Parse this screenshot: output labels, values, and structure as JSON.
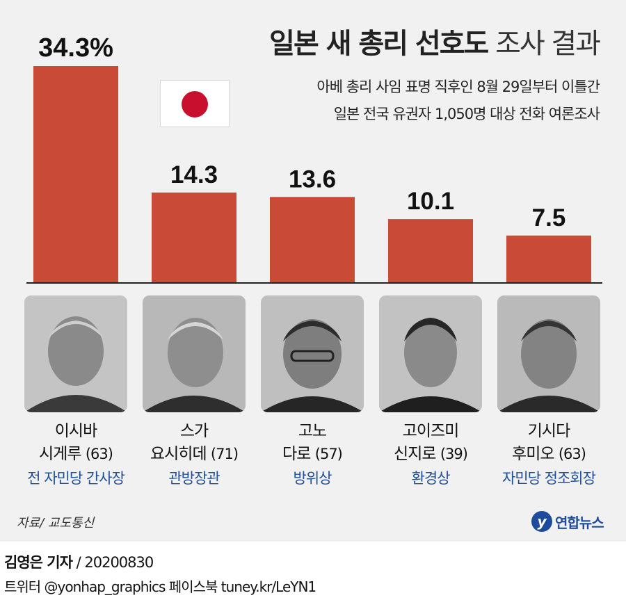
{
  "title": {
    "bold": "일본 새 총리 선호도",
    "light": "조사 결과"
  },
  "subtitle": [
    "아베 총리 사임 표명 직후인 8월 29일부터 이틀간",
    "일본 전국 유권자 1,050명 대상 전화 여론조사"
  ],
  "flag_icon": "japan-flag-icon",
  "colors": {
    "bar": "#c94a37",
    "role": "#1f4f9b",
    "background": "#f1f1f1"
  },
  "chart_data": {
    "type": "bar",
    "title": "일본 새 총리 선호도 조사 결과",
    "categories": [
      "이시바 시게루",
      "스가 요시히데",
      "고노 다로",
      "고이즈미 신지로",
      "기시다 후미오"
    ],
    "values": [
      34.3,
      14.3,
      13.6,
      10.1,
      7.5
    ],
    "value_labels": [
      "34.3%",
      "14.3",
      "13.6",
      "10.1",
      "7.5"
    ],
    "unit": "%",
    "ylim": [
      0,
      34.3
    ],
    "grid": false,
    "legend": "none"
  },
  "candidates": [
    {
      "name_1": "이시바",
      "name_2": "시게루",
      "age": "(63)",
      "role": "전 자민당 간사장"
    },
    {
      "name_1": "스가",
      "name_2": "요시히데",
      "age": "(71)",
      "role": "관방장관"
    },
    {
      "name_1": "고노",
      "name_2": "다로",
      "age": "(57)",
      "role": "방위상"
    },
    {
      "name_1": "고이즈미",
      "name_2": "신지로",
      "age": "(39)",
      "role": "환경상"
    },
    {
      "name_1": "기시다",
      "name_2": "후미오",
      "age": "(63)",
      "role": "자민당 정조회장"
    }
  ],
  "source": "자료/ 교도통신",
  "logo": {
    "mark": "y",
    "text": "연합뉴스"
  },
  "byline": {
    "reporter": "김영은 기자",
    "date": "/ 20200830"
  },
  "social": "트위터 @yonhap_graphics  페이스북 tuney.kr/LeYN1"
}
